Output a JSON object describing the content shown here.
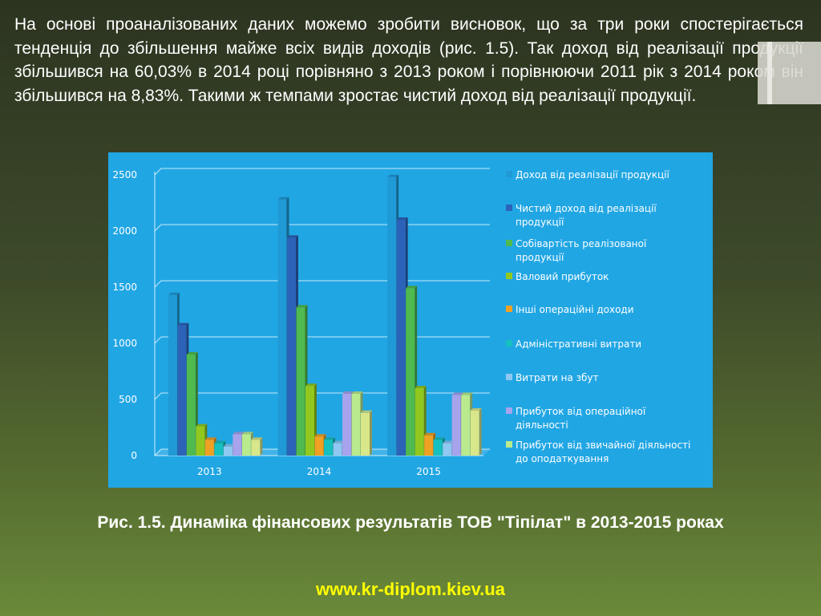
{
  "body_text": "На основі проаналізованих даних можемо зробити висновок, що за три роки спостерігається тенденція до збільшення майже всіх видів доходів (рис. 1.5). Так доход від реалізації продукції збільшився на 60,03% в 2014 році порівняно з 2013 роком і порівнюючи 2011 рік з 2014 роком він збільшився на 8,83%. Такими ж темпами зростає чистий доход від реалізації продукції.",
  "caption": "Рис. 1.5. Динаміка фінансових результатів ТОВ \"Тіпілат\" в 2013-2015 роках",
  "website": "www.kr-diplom.kiev.ua",
  "colors": {
    "panel_bg": "#21a6e4",
    "website": "#ffff00"
  },
  "chart_data": {
    "type": "bar",
    "categories": [
      "2013",
      "2014",
      "2015"
    ],
    "ylim": [
      0,
      2500
    ],
    "yticks": [
      0,
      500,
      1000,
      1500,
      2000,
      2500
    ],
    "grid": true,
    "legend_position": "right",
    "series": [
      {
        "name": "Доход від реалізації продукції",
        "color": "#1f9ad6",
        "values": [
          1430,
          2280,
          2480
        ]
      },
      {
        "name": "Чистий доход від реалізації продукції",
        "color": "#2c63b8",
        "values": [
          1160,
          1940,
          2100
        ]
      },
      {
        "name": "Собівартість реалізованої продукції",
        "color": "#4fba4f",
        "values": [
          900,
          1320,
          1490
        ]
      },
      {
        "name": "Валовий прибуток",
        "color": "#92c81e",
        "values": [
          260,
          620,
          600
        ]
      },
      {
        "name": "Інші операційні доходи",
        "color": "#f0a023",
        "values": [
          140,
          170,
          180
        ]
      },
      {
        "name": "Адміністративні витрати",
        "color": "#16c0c0",
        "values": [
          110,
          140,
          140
        ]
      },
      {
        "name": "Витрати на збут",
        "color": "#8fc8f2",
        "values": [
          80,
          110,
          110
        ]
      },
      {
        "name": "Прибуток від операційної діяльності",
        "color": "#a7a3ec",
        "values": [
          190,
          550,
          540
        ]
      },
      {
        "name": "Прибуток від звичайної діяльності до оподаткування",
        "color": "#b9ea8e",
        "values": [
          190,
          550,
          540
        ]
      },
      {
        "name": "",
        "color": "#d7e78a",
        "values": [
          140,
          380,
          400
        ]
      }
    ],
    "legend_lines": [
      [
        "Доход від реалізації продукції"
      ],
      [
        "Чистий доход від реалізації",
        "продукції"
      ],
      [
        "Собівартість реалізованої",
        "продукції"
      ],
      [
        "Валовий прибуток"
      ],
      [
        "Інші операційні доходи"
      ],
      [
        "Адміністративні витрати"
      ],
      [
        "Витрати на збут"
      ],
      [
        "Прибуток від операційної",
        "діяльності"
      ],
      [
        "Прибуток від звичайної діяльності",
        "до оподаткування"
      ]
    ]
  }
}
